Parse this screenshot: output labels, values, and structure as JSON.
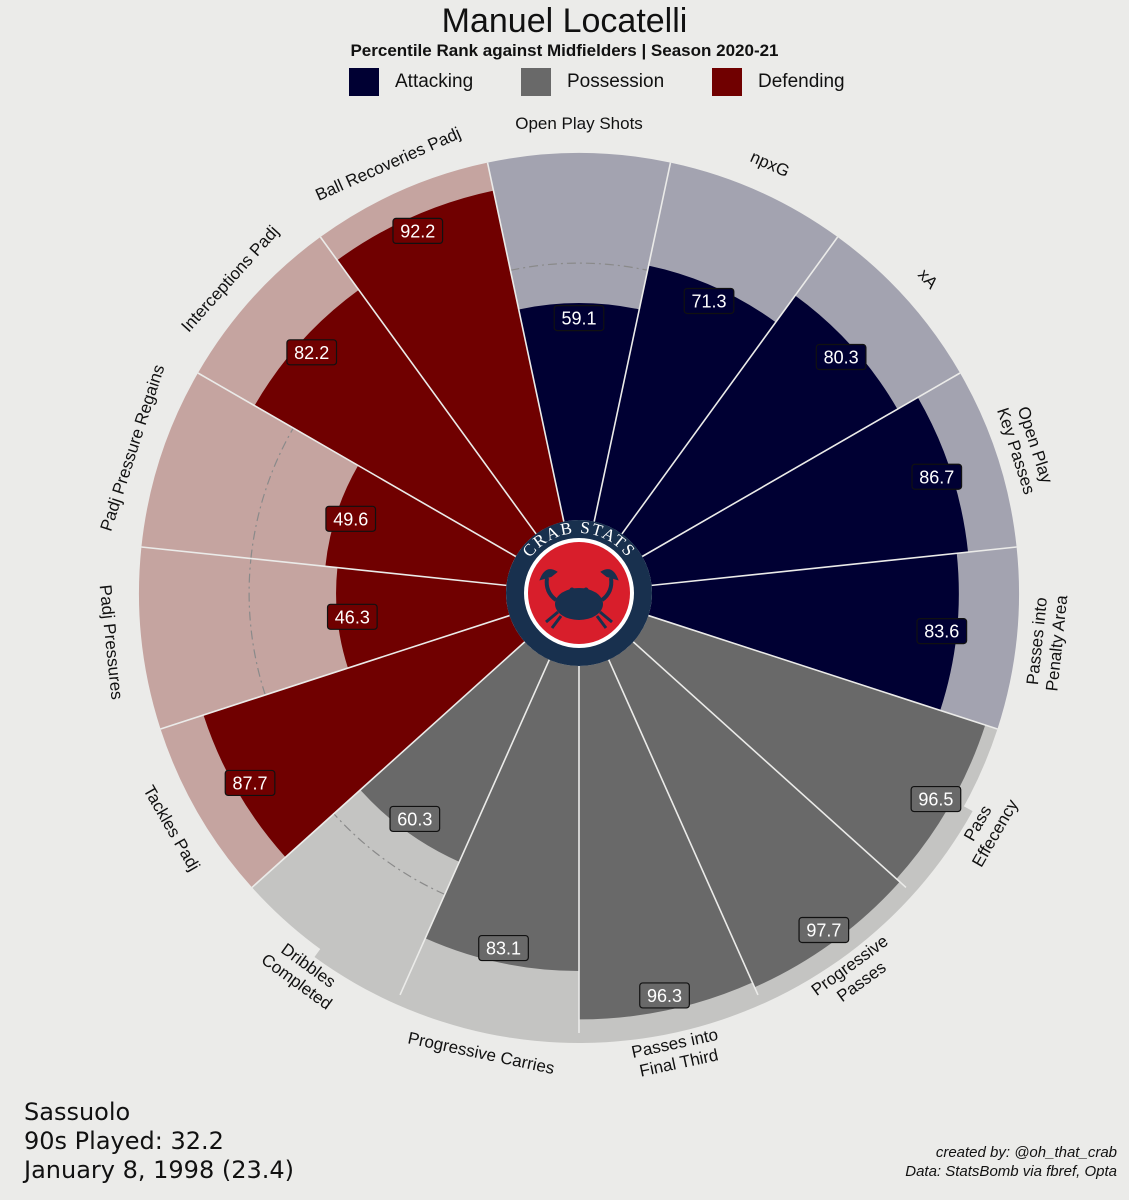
{
  "header": {
    "title": "Manuel Locatelli",
    "subtitle": "Percentile Rank against Midfielders | Season 2020-21"
  },
  "legend": [
    {
      "label": "Attacking",
      "color": "#000033"
    },
    {
      "label": "Possession",
      "color": "#696969"
    },
    {
      "label": "Defending",
      "color": "#700000"
    }
  ],
  "chart_data": {
    "type": "pizza",
    "ylim": [
      0,
      100
    ],
    "reference_ring_value": 70,
    "series": [
      {
        "name": "Attacking",
        "color": "#000033",
        "background": "#A3A3B0"
      },
      {
        "name": "Possession",
        "color": "#696969",
        "background": "#C4C4C2"
      },
      {
        "name": "Defending",
        "color": "#700000",
        "background": "#C5A4A0"
      }
    ],
    "categories": [
      "Open Play Shots",
      "npxG",
      "xA",
      "Open Play\nKey Passes",
      "Passes into\nPenalty Area",
      "Pass\nEffecency",
      "Progressive\nPasses",
      "Passes into\nFinal Third",
      "Progressive Carries",
      "Dribbles\nCompleted",
      "Tackles Padj",
      "Padj Pressures",
      "Padj Pressure Regains",
      "Interceptions Padj",
      "Ball Recoveries Padj"
    ],
    "groups": [
      "Attacking",
      "Attacking",
      "Attacking",
      "Attacking",
      "Attacking",
      "Possession",
      "Possession",
      "Possession",
      "Possession",
      "Possession",
      "Defending",
      "Defending",
      "Defending",
      "Defending",
      "Defending"
    ],
    "values": [
      59.1,
      71.3,
      80.3,
      86.7,
      83.6,
      96.5,
      97.7,
      96.3,
      83.1,
      60.3,
      87.7,
      46.3,
      49.6,
      82.2,
      92.2
    ]
  },
  "logo": {
    "text": "CRAB STATS"
  },
  "footer": {
    "team": "Sassuolo",
    "nineties": "90s Played: 32.2",
    "birth": "January 8, 1998 (23.4)",
    "credit": "created by: @oh_that_crab",
    "source": "Data: StatsBomb via fbref, Opta"
  }
}
